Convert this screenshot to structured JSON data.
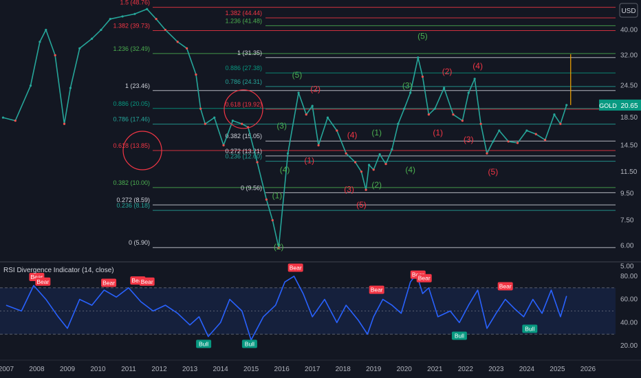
{
  "chart_data": [
    {
      "type": "line",
      "title": "",
      "xlabel": "",
      "ylabel": "",
      "y_scale": "log",
      "ylim": [
        5.3,
        52
      ],
      "x_range": [
        2006.8,
        2026.9
      ],
      "grid": false,
      "currency": "USD",
      "price_ticks": [
        "40.00",
        "32.00",
        "24.50",
        "18.50",
        "14.50",
        "11.50",
        "9.50",
        "7.50",
        "6.00",
        "5.00"
      ],
      "price_tick_values": [
        40,
        32,
        24.5,
        18.5,
        14.5,
        11.5,
        9.5,
        7.5,
        6.0,
        5.0
      ],
      "year_ticks": [
        "2007",
        "2008",
        "2009",
        "2010",
        "2011",
        "2012",
        "2013",
        "2014",
        "2015",
        "2016",
        "2017",
        "2018",
        "2019",
        "2020",
        "2021",
        "2022",
        "2023",
        "2024",
        "2025",
        "2026"
      ],
      "year_tick_values": [
        2007,
        2008,
        2009,
        2010,
        2011,
        2012,
        2013,
        2014,
        2015,
        2016,
        2017,
        2018,
        2019,
        2020,
        2021,
        2022,
        2023,
        2024,
        2025,
        2026
      ],
      "symbol": "GOLD",
      "last_price": 20.65,
      "last_price_label": "20.65",
      "price_series": {
        "name": "GOLD",
        "x": [
          2006.9,
          2007.3,
          2007.8,
          2008.1,
          2008.3,
          2008.6,
          2008.9,
          2009.1,
          2009.4,
          2009.8,
          2010.1,
          2010.4,
          2010.8,
          2011.2,
          2011.6,
          2011.9,
          2012.2,
          2012.6,
          2012.9,
          2013.2,
          2013.35,
          2013.5,
          2013.8,
          2014.1,
          2014.4,
          2014.7,
          2014.9,
          2015.2,
          2015.5,
          2015.7,
          2015.9,
          2016.2,
          2016.55,
          2016.8,
          2017.0,
          2017.2,
          2017.5,
          2017.8,
          2018.1,
          2018.4,
          2018.6,
          2018.75,
          2018.85,
          2019.0,
          2019.2,
          2019.4,
          2019.6,
          2019.8,
          2020.0,
          2020.2,
          2020.45,
          2020.6,
          2020.8,
          2021.0,
          2021.3,
          2021.6,
          2021.9,
          2022.1,
          2022.3,
          2022.5,
          2022.7,
          2022.9,
          2023.1,
          2023.4,
          2023.7,
          2024.0,
          2024.3,
          2024.6,
          2024.9,
          2025.1,
          2025.3
        ],
        "values": [
          18.5,
          18.0,
          24.5,
          36.0,
          40.0,
          32.0,
          17.5,
          24.0,
          34.0,
          37.0,
          40.0,
          44.0,
          45.0,
          46.0,
          48.0,
          44.0,
          40.0,
          36.0,
          34.0,
          27.0,
          20.0,
          17.5,
          18.5,
          14.5,
          18.0,
          17.5,
          17.0,
          12.5,
          9.0,
          7.5,
          5.9,
          13.5,
          23.0,
          19.0,
          20.5,
          14.5,
          18.5,
          16.5,
          13.5,
          12.5,
          11.5,
          9.8,
          12.2,
          11.7,
          13.4,
          12.3,
          14.0,
          17.5,
          20.0,
          23.0,
          31.35,
          26.5,
          19.0,
          20.0,
          24.0,
          19.0,
          18.0,
          23.0,
          26.0,
          17.5,
          13.5,
          15.0,
          16.5,
          15.0,
          14.8,
          16.5,
          16.0,
          15.2,
          19.0,
          17.5,
          20.65
        ]
      },
      "fib_levels": [
        {
          "label": "1.5 (48.76)",
          "value": 48.76,
          "color": "#f23645"
        },
        {
          "label": "1.382 (39.73)",
          "value": 39.73,
          "color": "#f23645"
        },
        {
          "label": "1.236 (32.49)",
          "value": 32.49,
          "color": "#4caf50"
        },
        {
          "label": "1 (23.46)",
          "value": 23.46,
          "color": "#d1d4dc"
        },
        {
          "label": "0.886 (20.05)",
          "value": 20.05,
          "color": "#089981"
        },
        {
          "label": "0.786 (17.46)",
          "value": 17.46,
          "color": "#26a69a"
        },
        {
          "label": "0.618 (13.85)",
          "value": 13.85,
          "color": "#f23645"
        },
        {
          "label": "0.382 (10.00)",
          "value": 10.0,
          "color": "#4caf50"
        },
        {
          "label": "0.272 (8.59)",
          "value": 8.59,
          "color": "#d1d4dc"
        },
        {
          "label": "0.236 (8.18)",
          "value": 8.18,
          "color": "#26a69a"
        },
        {
          "label": "0 (5.90)",
          "value": 5.9,
          "color": "#d1d4dc"
        },
        {
          "label": "1.382 (44.44)",
          "value": 44.44,
          "color": "#f23645"
        },
        {
          "label": "1.236 (41.48)",
          "value": 41.48,
          "color": "#4caf50"
        },
        {
          "label": "1 (31.35)",
          "value": 31.35,
          "color": "#d1d4dc"
        },
        {
          "label": "0.886 (27.38)",
          "value": 27.38,
          "color": "#089981"
        },
        {
          "label": "0.786 (24.31)",
          "value": 24.31,
          "color": "#26a69a"
        },
        {
          "label": "0.618 (19.92)",
          "value": 19.92,
          "color": "#f23645"
        },
        {
          "label": "0.382 (15.05)",
          "value": 15.05,
          "color": "#d1d4dc"
        },
        {
          "label": "0.272 (13.21)",
          "value": 13.21,
          "color": "#d1d4dc"
        },
        {
          "label": "0.236 (12.60)",
          "value": 12.6,
          "color": "#26a69a"
        },
        {
          "label": "0 (9.56)",
          "value": 9.56,
          "color": "#d1d4dc"
        }
      ],
      "wave_labels": [
        {
          "text": "(5)",
          "x": 2016.5,
          "y": 26.3,
          "color": "#4caf50"
        },
        {
          "text": "(2)",
          "x": 2017.1,
          "y": 23.2,
          "color": "#f23645"
        },
        {
          "text": "(3)",
          "x": 2016.0,
          "y": 16.8,
          "color": "#4caf50"
        },
        {
          "text": "(1)",
          "x": 2016.9,
          "y": 12.4,
          "color": "#f23645"
        },
        {
          "text": "(4)",
          "x": 2016.1,
          "y": 11.4,
          "color": "#4caf50"
        },
        {
          "text": "(1)",
          "x": 2015.85,
          "y": 9.1,
          "color": "#4caf50"
        },
        {
          "text": "(2)",
          "x": 2015.9,
          "y": 5.8,
          "color": "#4caf50"
        },
        {
          "text": "(4)",
          "x": 2018.3,
          "y": 15.5,
          "color": "#f23645"
        },
        {
          "text": "(1)",
          "x": 2019.1,
          "y": 15.8,
          "color": "#4caf50"
        },
        {
          "text": "(3)",
          "x": 2018.2,
          "y": 9.6,
          "color": "#f23645"
        },
        {
          "text": "(2)",
          "x": 2019.1,
          "y": 10.0,
          "color": "#4caf50"
        },
        {
          "text": "(5)",
          "x": 2018.6,
          "y": 8.4,
          "color": "#f23645"
        },
        {
          "text": "(5)",
          "x": 2020.6,
          "y": 37.0,
          "color": "#4caf50"
        },
        {
          "text": "(3)",
          "x": 2020.1,
          "y": 23.9,
          "color": "#4caf50"
        },
        {
          "text": "(4)",
          "x": 2020.2,
          "y": 11.4,
          "color": "#4caf50"
        },
        {
          "text": "(2)",
          "x": 2021.4,
          "y": 27.1,
          "color": "#f23645"
        },
        {
          "text": "(4)",
          "x": 2022.4,
          "y": 28.4,
          "color": "#f23645"
        },
        {
          "text": "(1)",
          "x": 2021.1,
          "y": 15.8,
          "color": "#f23645"
        },
        {
          "text": "(3)",
          "x": 2022.1,
          "y": 14.9,
          "color": "#f23645"
        },
        {
          "text": "(5)",
          "x": 2022.9,
          "y": 11.2,
          "color": "#f23645"
        }
      ]
    },
    {
      "type": "line",
      "title": "RSI Divergence Indicator (14, close)",
      "ylim": [
        10,
        90
      ],
      "band": [
        30,
        70
      ],
      "ticks": [
        "80.00",
        "60.00",
        "40.00",
        "20.00"
      ],
      "tick_values": [
        80,
        60,
        40,
        20
      ],
      "series": [
        {
          "x": [
            2007.0,
            2007.5,
            2007.9,
            2008.3,
            2008.7,
            2009.0,
            2009.4,
            2009.8,
            2010.2,
            2010.6,
            2011.0,
            2011.4,
            2011.8,
            2012.2,
            2012.6,
            2013.0,
            2013.3,
            2013.6,
            2014.0,
            2014.3,
            2014.7,
            2015.0,
            2015.4,
            2015.8,
            2016.1,
            2016.4,
            2016.7,
            2017.0,
            2017.4,
            2017.8,
            2018.1,
            2018.5,
            2018.8,
            2019.0,
            2019.3,
            2019.6,
            2019.9,
            2020.2,
            2020.4,
            2020.6,
            2020.8,
            2021.1,
            2021.5,
            2021.8,
            2022.1,
            2022.4,
            2022.7,
            2023.0,
            2023.3,
            2023.6,
            2023.9,
            2024.2,
            2024.5,
            2024.8,
            2025.1,
            2025.3
          ],
          "values": [
            55,
            50,
            72,
            60,
            45,
            35,
            60,
            55,
            68,
            62,
            70,
            58,
            50,
            55,
            48,
            38,
            45,
            28,
            40,
            60,
            50,
            25,
            45,
            55,
            75,
            80,
            65,
            45,
            60,
            40,
            55,
            42,
            30,
            45,
            60,
            55,
            48,
            75,
            82,
            65,
            70,
            45,
            50,
            40,
            55,
            68,
            35,
            48,
            60,
            52,
            45,
            60,
            48,
            68,
            45,
            63
          ]
        }
      ],
      "signals": [
        {
          "label": "Bear",
          "x": 2008.0,
          "y": 74,
          "kind": "bear"
        },
        {
          "label": "Bear",
          "x": 2008.2,
          "y": 70,
          "kind": "bear"
        },
        {
          "label": "Bear",
          "x": 2010.35,
          "y": 69,
          "kind": "bear"
        },
        {
          "label": "Bear",
          "x": 2011.3,
          "y": 71,
          "kind": "bear"
        },
        {
          "label": "Bear",
          "x": 2011.6,
          "y": 70,
          "kind": "bear"
        },
        {
          "label": "Bull",
          "x": 2013.45,
          "y": 27,
          "kind": "bull"
        },
        {
          "label": "Bull",
          "x": 2014.95,
          "y": 27,
          "kind": "bull"
        },
        {
          "label": "Bear",
          "x": 2016.45,
          "y": 82,
          "kind": "bear"
        },
        {
          "label": "Bear",
          "x": 2019.1,
          "y": 63,
          "kind": "bear"
        },
        {
          "label": "Bear",
          "x": 2020.45,
          "y": 76,
          "kind": "bear"
        },
        {
          "label": "Bear",
          "x": 2020.65,
          "y": 73,
          "kind": "bear"
        },
        {
          "label": "Bull",
          "x": 2021.8,
          "y": 34,
          "kind": "bull"
        },
        {
          "label": "Bear",
          "x": 2023.3,
          "y": 66,
          "kind": "bear"
        },
        {
          "label": "Bull",
          "x": 2024.1,
          "y": 40,
          "kind": "bull"
        }
      ]
    }
  ]
}
